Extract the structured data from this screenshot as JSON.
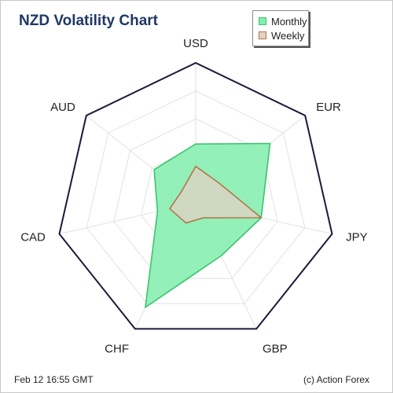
{
  "title": "NZD Volatility Chart",
  "timestamp": "Feb 12  16:55 GMT",
  "credit": "(c) Action Forex",
  "chart_data": {
    "type": "radar",
    "axes": [
      "USD",
      "EUR",
      "JPY",
      "GBP",
      "CHF",
      "CAD",
      "AUD"
    ],
    "range": [
      0,
      100
    ],
    "rings": 5,
    "grid": true,
    "legend": "top-right",
    "series": [
      {
        "name": "Monthly",
        "color": "#3cc46e",
        "fill": "#86eeb0",
        "values": [
          42,
          68,
          48,
          42,
          83,
          28,
          38
        ]
      },
      {
        "name": "Weekly",
        "color": "#b5764a",
        "fill": "#e3d2c5",
        "values": [
          26,
          22,
          48,
          12,
          16,
          19,
          13
        ]
      }
    ]
  }
}
